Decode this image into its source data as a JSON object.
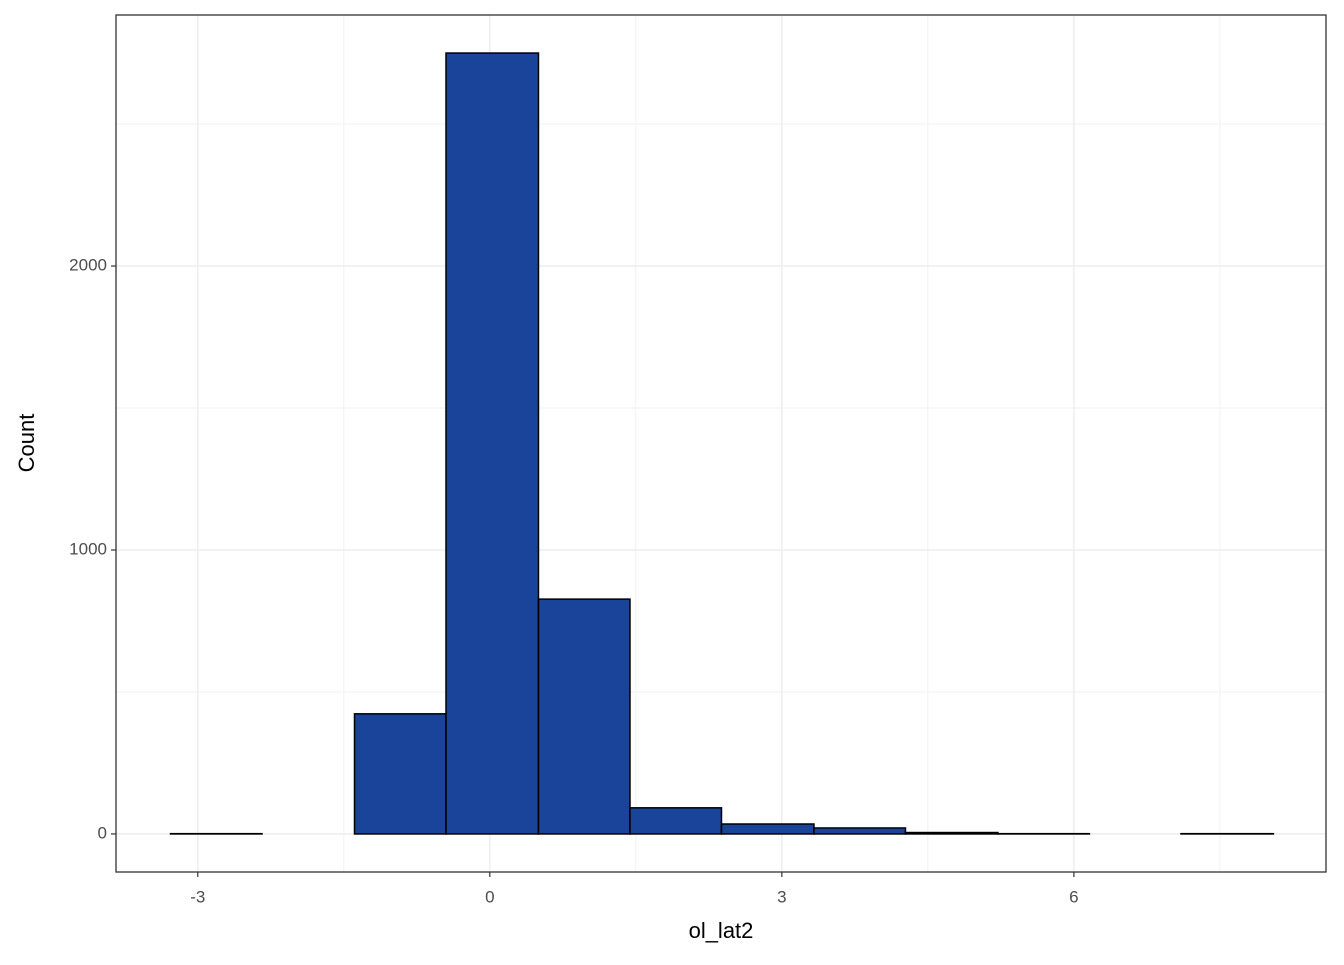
{
  "chart_data": {
    "type": "histogram",
    "xlabel": "ol_lat2",
    "ylabel": "Count",
    "bins": [
      -3.28,
      -2.34,
      -1.39,
      -0.45,
      0.5,
      1.44,
      2.38,
      3.33,
      4.27,
      5.22,
      6.16,
      7.1,
      8.05
    ],
    "values": [
      1,
      0,
      423,
      2750,
      827,
      92,
      35,
      21,
      5,
      1,
      0,
      1
    ],
    "color": "#1a4499",
    "xlim": [
      -3.84,
      8.59
    ],
    "ylim": [
      -134,
      2884
    ],
    "xticks": [
      -3,
      0,
      3,
      6
    ],
    "yticks": [
      0,
      1000,
      2000
    ],
    "xminor": [
      -1.5,
      1.5,
      4.5,
      7.5
    ],
    "yminor": [
      500,
      1500,
      2500
    ],
    "grid": true
  }
}
